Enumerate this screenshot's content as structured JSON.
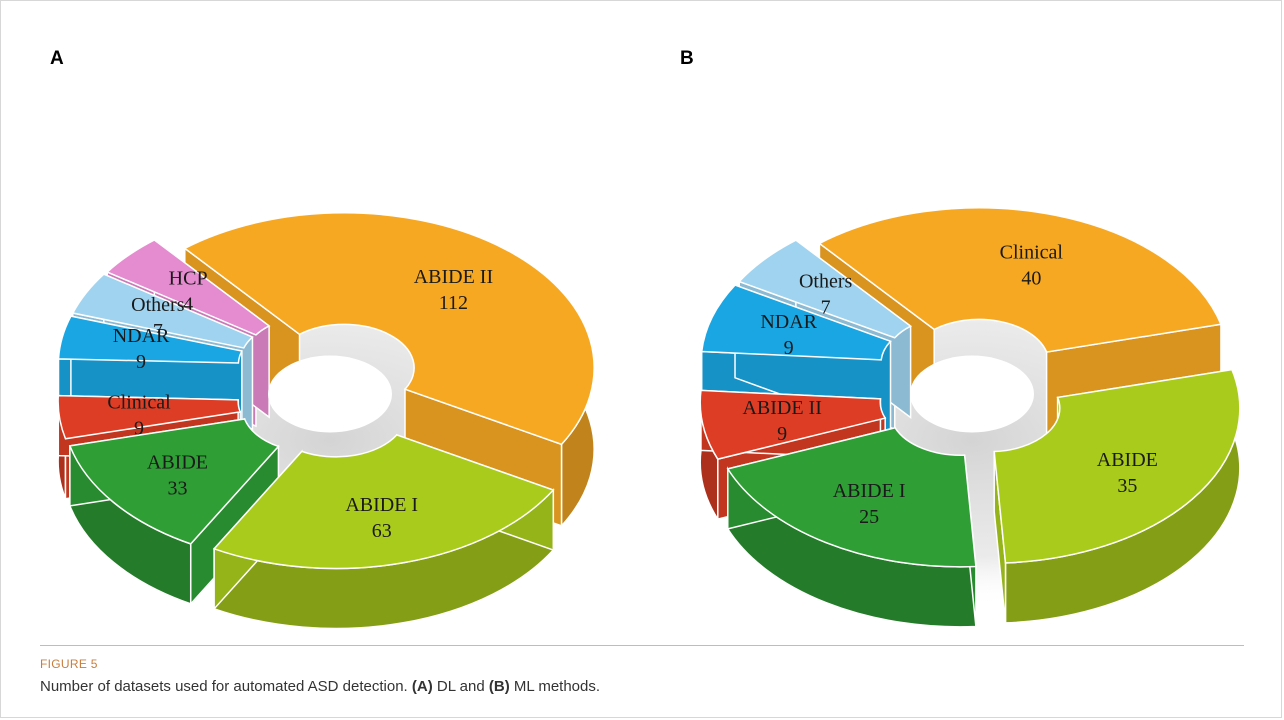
{
  "chart_data": [
    {
      "type": "pie",
      "panel": "A",
      "slices": [
        {
          "label": "ABIDE II",
          "value": 112,
          "color": "#f7a823"
        },
        {
          "label": "ABIDE I",
          "value": 63,
          "color": "#a9cc1c"
        },
        {
          "label": "ABIDE",
          "value": 33,
          "color": "#2e9e35"
        },
        {
          "label": "Clinical",
          "value": 9,
          "color": "#dd3d24"
        },
        {
          "label": "NDAR",
          "value": 9,
          "color": "#1aa6e2"
        },
        {
          "label": "Others",
          "value": 7,
          "color": "#9fd3ef"
        },
        {
          "label": "HCP",
          "value": 4,
          "color": "#e58bd0"
        }
      ]
    },
    {
      "type": "pie",
      "panel": "B",
      "slices": [
        {
          "label": "Clinical",
          "value": 40,
          "color": "#f7a823"
        },
        {
          "label": "ABIDE",
          "value": 35,
          "color": "#a9cc1c"
        },
        {
          "label": "ABIDE I",
          "value": 25,
          "color": "#2e9e35"
        },
        {
          "label": "ABIDE II",
          "value": 9,
          "color": "#dd3d24"
        },
        {
          "label": "NDAR",
          "value": 9,
          "color": "#1aa6e2"
        },
        {
          "label": "Others",
          "value": 7,
          "color": "#9fd3ef"
        }
      ]
    }
  ],
  "figure": {
    "label": "FIGURE 5",
    "caption_prefix": "Number of datasets used for automated ASD detection. ",
    "caption_a": "(A)",
    "caption_mid": " DL and ",
    "caption_b": "(B)",
    "caption_suffix": " ML methods."
  }
}
